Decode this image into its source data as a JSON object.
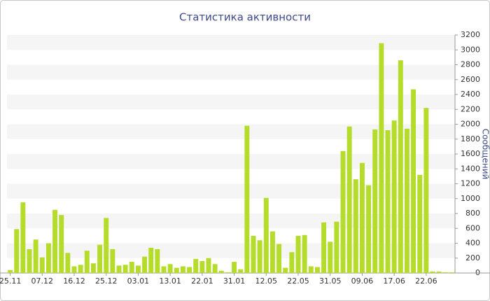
{
  "chart_data": {
    "type": "bar",
    "title": "Статистика активности",
    "y_label": "Сообщений",
    "categories": [
      "25.11",
      null,
      null,
      null,
      null,
      "07.12",
      null,
      null,
      null,
      null,
      "16.12",
      null,
      null,
      null,
      null,
      "25.12",
      null,
      null,
      null,
      null,
      "03.01",
      null,
      null,
      null,
      null,
      "13.01",
      null,
      null,
      null,
      null,
      "22.01",
      null,
      null,
      null,
      null,
      "31.01",
      null,
      null,
      null,
      null,
      "12.05",
      null,
      null,
      null,
      null,
      "22.05",
      null,
      null,
      null,
      null,
      "31.05",
      null,
      null,
      null,
      null,
      "09.06",
      null,
      null,
      null,
      null,
      "17.06",
      null,
      null,
      null,
      null,
      "22.06",
      null,
      null,
      null,
      null
    ],
    "values": [
      40,
      590,
      950,
      320,
      450,
      210,
      400,
      850,
      780,
      270,
      90,
      110,
      300,
      130,
      380,
      740,
      320,
      100,
      110,
      150,
      100,
      220,
      340,
      320,
      90,
      120,
      70,
      90,
      80,
      190,
      160,
      200,
      120,
      30,
      10,
      150,
      50,
      1980,
      500,
      440,
      1010,
      560,
      390,
      70,
      280,
      500,
      510,
      90,
      80,
      680,
      420,
      690,
      1640,
      1970,
      1260,
      1480,
      1180,
      1930,
      3090,
      1920,
      2050,
      2860,
      1940,
      2470,
      1320,
      2220,
      20,
      20,
      10,
      10
    ],
    "color": "#b5dc2a",
    "ylim": [
      0,
      3200
    ],
    "yticks": [
      0,
      200,
      400,
      600,
      800,
      1000,
      1200,
      1400,
      1600,
      1800,
      2000,
      2200,
      2400,
      2600,
      2800,
      3000,
      3200
    ],
    "grid": true
  }
}
